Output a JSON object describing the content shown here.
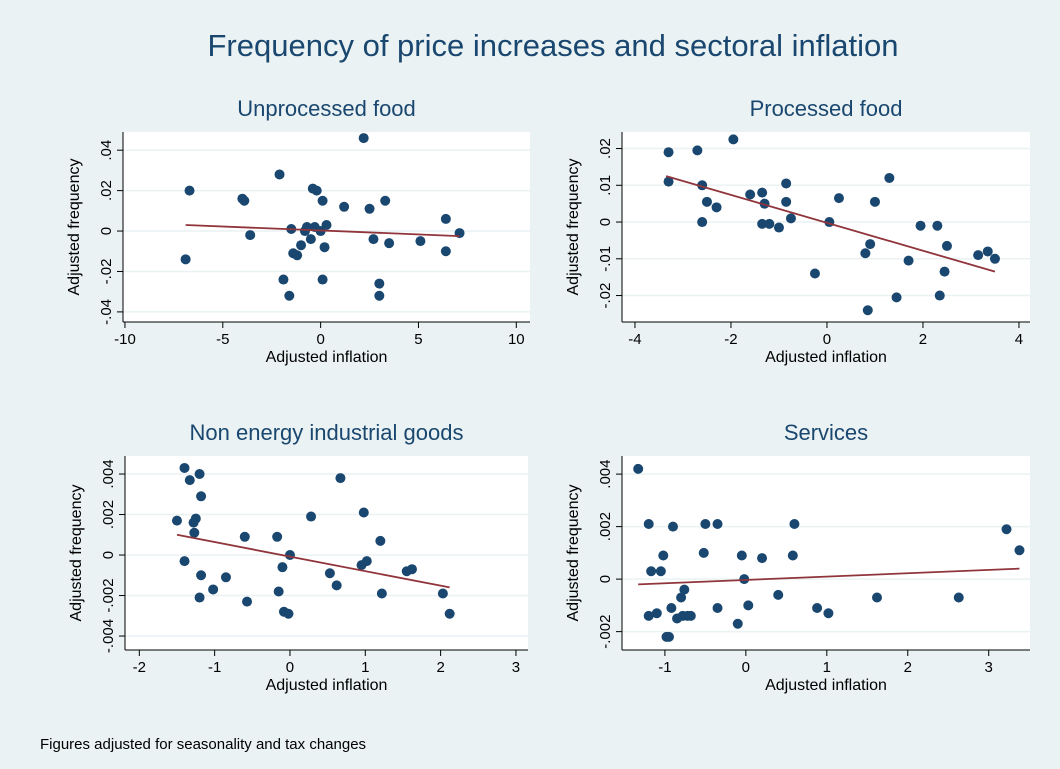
{
  "title": "Frequency of price increases and sectoral inflation",
  "note": "Figures adjusted for seasonality and tax changes",
  "chart_data": [
    {
      "type": "scatter",
      "title": "Unprocessed food",
      "xlabel": "Adjusted inflation",
      "ylabel": "Adjusted frequency",
      "xlim": [
        -10.1,
        10.7
      ],
      "ylim": [
        -0.045,
        0.049
      ],
      "grid": true,
      "xticks": [
        -10,
        -5,
        0,
        5,
        10
      ],
      "yticks": [
        {
          "value": -0.04,
          "label": "-.04"
        },
        {
          "value": -0.02,
          "label": "-.02"
        },
        0,
        {
          "value": 0.02,
          "label": ".02"
        },
        {
          "value": 0.04,
          "label": ".04"
        }
      ],
      "points": {
        "color": "#1a476f",
        "x": [
          -6.9,
          -6.7,
          -4.0,
          -3.9,
          -3.6,
          -2.1,
          -1.9,
          -1.6,
          -1.5,
          -1.4,
          -1.2,
          -1.0,
          -0.8,
          -0.7,
          -0.5,
          -0.4,
          -0.3,
          -0.2,
          0.0,
          0.1,
          0.1,
          0.2,
          0.3,
          1.2,
          2.2,
          2.5,
          2.7,
          3.0,
          3.0,
          3.3,
          3.5,
          5.1,
          6.4,
          6.4,
          7.1
        ],
        "y": [
          -0.014,
          0.02,
          0.016,
          0.015,
          -0.002,
          0.028,
          -0.024,
          -0.032,
          0.001,
          -0.011,
          -0.012,
          -0.007,
          0.0,
          0.002,
          -0.004,
          0.021,
          0.002,
          0.02,
          0.0,
          0.015,
          -0.024,
          -0.008,
          0.003,
          0.012,
          0.046,
          0.011,
          -0.004,
          -0.026,
          -0.032,
          0.015,
          -0.006,
          -0.005,
          0.006,
          -0.01,
          -0.001
        ]
      },
      "fit": {
        "color": "#90353b",
        "x": [
          -6.9,
          7.1
        ],
        "y": [
          0.003,
          -0.0025
        ]
      }
    },
    {
      "type": "scatter",
      "title": "Processed food",
      "xlabel": "Adjusted inflation",
      "ylabel": "Adjusted frequency",
      "xlim": [
        -4.27,
        4.23
      ],
      "ylim": [
        -0.0272,
        0.0245
      ],
      "grid": true,
      "xticks": [
        -4,
        -2,
        0,
        2,
        4
      ],
      "yticks": [
        {
          "value": -0.02,
          "label": "-.02"
        },
        {
          "value": -0.01,
          "label": "-.01"
        },
        0,
        {
          "value": 0.01,
          "label": ".01"
        },
        {
          "value": 0.02,
          "label": ".02"
        }
      ],
      "points": {
        "color": "#1a476f",
        "x": [
          -3.3,
          -3.3,
          -2.7,
          -2.6,
          -2.6,
          -2.5,
          -2.3,
          -1.95,
          -1.6,
          -1.35,
          -1.3,
          -1.35,
          -1.2,
          -1.0,
          -0.85,
          -0.85,
          -0.75,
          -0.25,
          0.05,
          0.25,
          0.8,
          0.85,
          0.9,
          1.0,
          1.3,
          1.45,
          1.7,
          1.95,
          2.3,
          2.35,
          2.45,
          2.5,
          3.15,
          3.35,
          3.5
        ],
        "y": [
          0.019,
          0.011,
          0.0195,
          0.01,
          0.0,
          0.0055,
          0.004,
          0.0225,
          0.0075,
          0.008,
          0.005,
          -0.0005,
          -0.0005,
          -0.0015,
          0.0105,
          0.0055,
          0.001,
          -0.014,
          0.0,
          0.0065,
          -0.0085,
          -0.024,
          -0.006,
          0.0055,
          0.012,
          -0.0205,
          -0.0105,
          -0.001,
          -0.001,
          -0.02,
          -0.0135,
          -0.0065,
          -0.009,
          -0.008,
          -0.01
        ]
      },
      "fit": {
        "color": "#90353b",
        "x": [
          -3.35,
          3.5
        ],
        "y": [
          0.0125,
          -0.0135
        ]
      }
    },
    {
      "type": "scatter",
      "title": "Non energy industrial goods",
      "xlabel": "Adjusted inflation",
      "ylabel": "Adjusted frequency",
      "xlim": [
        -2.19,
        3.16
      ],
      "ylim": [
        -0.00469,
        0.00489
      ],
      "grid": true,
      "xticks": [
        -2,
        -1,
        0,
        1,
        2,
        3
      ],
      "yticks": [
        {
          "value": -0.004,
          "label": "-.004"
        },
        {
          "value": -0.002,
          "label": "-.002"
        },
        0,
        {
          "value": 0.002,
          "label": ".002"
        },
        {
          "value": 0.004,
          "label": ".004"
        }
      ],
      "points": {
        "color": "#1a476f",
        "x": [
          -1.5,
          -1.4,
          -1.4,
          -1.33,
          -1.28,
          -1.27,
          -1.25,
          -1.2,
          -1.18,
          -1.18,
          -1.2,
          -1.02,
          -0.85,
          -0.6,
          -0.57,
          -0.17,
          -0.15,
          -0.1,
          -0.08,
          -0.02,
          0.0,
          0.28,
          0.53,
          0.62,
          0.67,
          0.98,
          0.95,
          1.02,
          1.2,
          1.22,
          1.55,
          1.62,
          2.03,
          2.12
        ],
        "y": [
          0.0017,
          0.0043,
          -0.0003,
          0.0037,
          0.0016,
          0.0011,
          0.0018,
          0.004,
          0.0029,
          -0.001,
          -0.0021,
          -0.0017,
          -0.0011,
          0.0009,
          -0.0023,
          0.0009,
          -0.0018,
          -0.0006,
          -0.0028,
          -0.0029,
          0.0,
          0.0019,
          -0.0009,
          -0.0015,
          0.0038,
          0.0021,
          -0.0005,
          -0.0003,
          0.0007,
          -0.0019,
          -0.0008,
          -0.0007,
          -0.0019,
          -0.0029
        ]
      },
      "fit": {
        "color": "#90353b",
        "x": [
          -1.5,
          2.12
        ],
        "y": [
          0.001,
          -0.0016
        ]
      }
    },
    {
      "type": "scatter",
      "title": "Services",
      "xlabel": "Adjusted inflation",
      "ylabel": "Adjusted frequency",
      "xlim": [
        -1.53,
        3.51
      ],
      "ylim": [
        -0.0027,
        0.00469
      ],
      "grid": true,
      "xticks": [
        -1,
        0,
        1,
        2,
        3
      ],
      "yticks": [
        {
          "value": -0.002,
          "label": "-.002"
        },
        0,
        {
          "value": 0.002,
          "label": ".002"
        },
        {
          "value": 0.004,
          "label": ".004"
        }
      ],
      "points": {
        "color": "#1a476f",
        "x": [
          -1.33,
          -1.2,
          -1.17,
          -1.2,
          -1.1,
          -1.05,
          -1.02,
          -0.98,
          -0.95,
          -0.92,
          -0.9,
          -0.85,
          -0.8,
          -0.78,
          -0.76,
          -0.72,
          -0.68,
          -0.52,
          -0.5,
          -0.35,
          -0.35,
          -0.05,
          -0.02,
          0.03,
          -0.1,
          0.2,
          0.4,
          0.58,
          0.6,
          0.88,
          1.02,
          1.62,
          2.63,
          3.22,
          3.38
        ],
        "y": [
          0.0042,
          0.0021,
          0.0003,
          -0.0014,
          -0.0013,
          0.0003,
          0.0009,
          -0.0022,
          -0.0022,
          -0.0011,
          0.002,
          -0.0015,
          -0.0007,
          -0.0014,
          -0.0004,
          -0.0014,
          -0.0014,
          0.001,
          0.0021,
          0.0021,
          -0.0011,
          0.0009,
          0.0,
          -0.001,
          -0.0017,
          0.0008,
          -0.0006,
          0.0009,
          0.0021,
          -0.0011,
          -0.0013,
          -0.0007,
          -0.0007,
          0.0019,
          0.0011
        ]
      },
      "fit": {
        "color": "#90353b",
        "x": [
          -1.33,
          3.38
        ],
        "y": [
          -0.0002,
          0.0004
        ]
      }
    }
  ]
}
